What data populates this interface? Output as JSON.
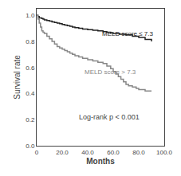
{
  "chart_data": {
    "type": "step",
    "xlabel": "Months",
    "ylabel": "Survival rate",
    "xlim": [
      0,
      100
    ],
    "ylim": [
      0.0,
      1.05
    ],
    "xticks": [
      0,
      {
        "value": 20,
        "label": "20.0"
      },
      {
        "value": 40,
        "label": "40.0"
      },
      {
        "value": 60,
        "label": "60.0"
      },
      {
        "value": 80,
        "label": "80.0"
      },
      {
        "value": 100,
        "label": "100.0"
      }
    ],
    "yticks": [
      {
        "value": 0,
        "label": "0.0"
      },
      0.2,
      0.4,
      0.6,
      0.8,
      {
        "value": 1,
        "label": "1.0"
      }
    ],
    "grid": false,
    "annotations": [
      "Log-rank p < 0.001"
    ],
    "series": [
      {
        "name": "MELD score ≤ 7.3",
        "color": "#222222",
        "x": [
          0,
          1,
          2,
          4,
          5,
          6,
          8,
          10,
          12,
          14,
          16,
          18,
          20,
          22,
          24,
          26,
          28,
          30,
          33,
          36,
          40,
          44,
          48,
          52,
          55,
          58,
          60,
          65,
          70,
          75,
          80,
          85,
          90
        ],
        "values": [
          1.0,
          0.99,
          0.98,
          0.975,
          0.97,
          0.965,
          0.96,
          0.955,
          0.95,
          0.945,
          0.94,
          0.935,
          0.93,
          0.925,
          0.92,
          0.915,
          0.91,
          0.905,
          0.9,
          0.895,
          0.89,
          0.885,
          0.88,
          0.875,
          0.87,
          0.865,
          0.86,
          0.855,
          0.85,
          0.84,
          0.83,
          0.815,
          0.8
        ]
      },
      {
        "name": "MELD score > 7.3",
        "color": "#888888",
        "x": [
          0,
          1,
          2,
          3,
          4,
          5,
          6,
          8,
          10,
          12,
          14,
          16,
          18,
          20,
          22,
          24,
          26,
          28,
          30,
          33,
          36,
          40,
          44,
          48,
          52,
          55,
          58,
          60,
          62,
          64,
          66,
          68,
          70,
          72,
          75,
          78,
          80,
          85,
          90
        ],
        "values": [
          1.0,
          0.97,
          0.94,
          0.91,
          0.88,
          0.87,
          0.86,
          0.84,
          0.82,
          0.8,
          0.78,
          0.76,
          0.75,
          0.74,
          0.73,
          0.72,
          0.71,
          0.7,
          0.69,
          0.68,
          0.67,
          0.66,
          0.65,
          0.64,
          0.63,
          0.61,
          0.59,
          0.57,
          0.55,
          0.53,
          0.51,
          0.49,
          0.47,
          0.46,
          0.45,
          0.44,
          0.43,
          0.42,
          0.42
        ]
      }
    ]
  }
}
